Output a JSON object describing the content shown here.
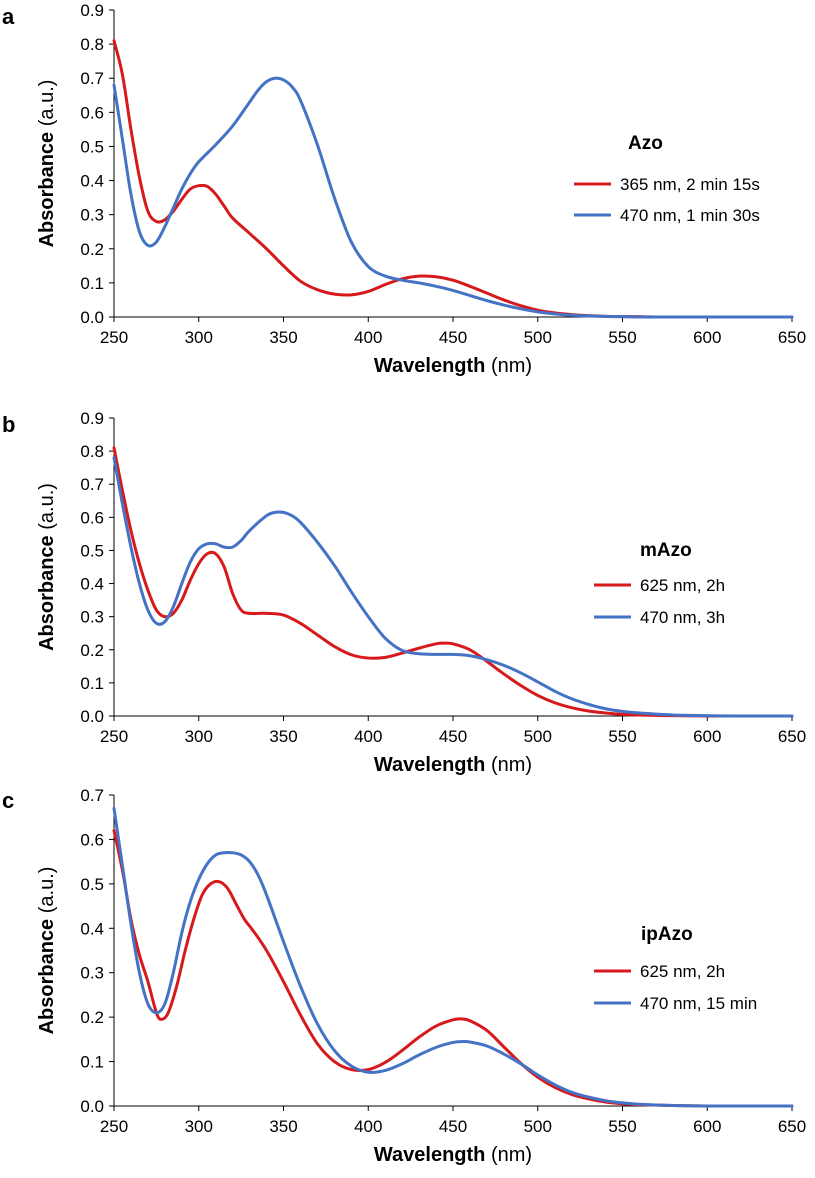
{
  "chart_data": [
    {
      "panel": "a",
      "type": "line",
      "xlabel_bold": "Wavelength",
      "xlabel_unit": "(nm)",
      "ylabel_bold": "Absorbance",
      "ylabel_unit": "(a.u.)",
      "xlim": [
        250,
        650
      ],
      "ylim": [
        0,
        0.9
      ],
      "xticks": [
        "250",
        "300",
        "350",
        "400",
        "450",
        "500",
        "550",
        "600",
        "650"
      ],
      "yticks": [
        "0.0",
        "0.1",
        "0.2",
        "0.3",
        "0.4",
        "0.5",
        "0.6",
        "0.7",
        "0.8",
        "0.9"
      ],
      "legend_title": "Azo",
      "series": [
        {
          "name": "365 nm, 2 min 15s",
          "color": "#d7191c",
          "x": [
            250,
            255,
            260,
            265,
            270,
            275,
            280,
            285,
            290,
            295,
            300,
            305,
            310,
            315,
            320,
            330,
            340,
            350,
            360,
            370,
            380,
            390,
            400,
            410,
            420,
            430,
            440,
            450,
            460,
            470,
            480,
            490,
            500,
            510,
            520,
            530,
            540,
            550,
            560,
            570,
            580,
            600,
            620,
            650
          ],
          "y": [
            0.81,
            0.71,
            0.55,
            0.41,
            0.31,
            0.28,
            0.285,
            0.31,
            0.345,
            0.375,
            0.385,
            0.383,
            0.36,
            0.325,
            0.29,
            0.245,
            0.2,
            0.15,
            0.105,
            0.08,
            0.067,
            0.065,
            0.075,
            0.095,
            0.112,
            0.12,
            0.118,
            0.108,
            0.09,
            0.07,
            0.05,
            0.033,
            0.02,
            0.012,
            0.007,
            0.004,
            0.002,
            0.001,
            0.001,
            0.0,
            0.0,
            0.0,
            0.0,
            0.0
          ]
        },
        {
          "name": "470 nm, 1 min 30s",
          "color": "#4472c4",
          "x": [
            250,
            255,
            260,
            265,
            270,
            275,
            280,
            285,
            290,
            295,
            300,
            310,
            320,
            330,
            335,
            340,
            345,
            350,
            355,
            360,
            370,
            380,
            390,
            400,
            410,
            420,
            430,
            440,
            450,
            460,
            470,
            480,
            490,
            500,
            510,
            520,
            530,
            540,
            550,
            560,
            580,
            600,
            620,
            650
          ],
          "y": [
            0.68,
            0.52,
            0.36,
            0.25,
            0.21,
            0.22,
            0.265,
            0.32,
            0.375,
            0.42,
            0.455,
            0.505,
            0.56,
            0.63,
            0.665,
            0.69,
            0.7,
            0.695,
            0.675,
            0.635,
            0.505,
            0.35,
            0.22,
            0.148,
            0.12,
            0.108,
            0.1,
            0.09,
            0.078,
            0.063,
            0.048,
            0.035,
            0.024,
            0.015,
            0.009,
            0.005,
            0.003,
            0.002,
            0.001,
            0.0,
            0.0,
            0.0,
            0.0,
            0.0
          ]
        }
      ]
    },
    {
      "panel": "b",
      "type": "line",
      "xlabel_bold": "Wavelength",
      "xlabel_unit": "(nm)",
      "ylabel_bold": "Absorbance",
      "ylabel_unit": "(a.u.)",
      "xlim": [
        250,
        650
      ],
      "ylim": [
        0,
        0.9
      ],
      "xticks": [
        "250",
        "300",
        "350",
        "400",
        "450",
        "500",
        "550",
        "600",
        "650"
      ],
      "yticks": [
        "0.0",
        "0.1",
        "0.2",
        "0.3",
        "0.4",
        "0.5",
        "0.6",
        "0.7",
        "0.8",
        "0.9"
      ],
      "legend_title": "mAzo",
      "series": [
        {
          "name": "625 nm, 2h",
          "color": "#d7191c",
          "x": [
            250,
            255,
            260,
            265,
            270,
            275,
            280,
            285,
            290,
            295,
            300,
            305,
            310,
            315,
            320,
            325,
            330,
            340,
            350,
            360,
            370,
            380,
            390,
            400,
            410,
            420,
            430,
            440,
            445,
            450,
            460,
            470,
            480,
            490,
            500,
            510,
            520,
            530,
            540,
            550,
            560,
            580,
            600,
            620,
            650
          ],
          "y": [
            0.81,
            0.68,
            0.56,
            0.46,
            0.38,
            0.32,
            0.3,
            0.31,
            0.35,
            0.41,
            0.46,
            0.49,
            0.49,
            0.45,
            0.37,
            0.32,
            0.31,
            0.31,
            0.305,
            0.28,
            0.245,
            0.21,
            0.185,
            0.175,
            0.177,
            0.19,
            0.205,
            0.218,
            0.22,
            0.218,
            0.2,
            0.165,
            0.127,
            0.092,
            0.062,
            0.04,
            0.025,
            0.015,
            0.009,
            0.005,
            0.003,
            0.001,
            0.0,
            0.0,
            0.0
          ]
        },
        {
          "name": "470 nm, 3h",
          "color": "#4472c4",
          "x": [
            250,
            255,
            260,
            265,
            270,
            275,
            280,
            285,
            290,
            295,
            300,
            305,
            310,
            315,
            320,
            325,
            330,
            340,
            345,
            350,
            355,
            360,
            370,
            380,
            390,
            400,
            410,
            420,
            430,
            440,
            450,
            460,
            470,
            480,
            490,
            500,
            510,
            520,
            530,
            540,
            550,
            560,
            580,
            600,
            620,
            650
          ],
          "y": [
            0.78,
            0.64,
            0.51,
            0.4,
            0.32,
            0.28,
            0.285,
            0.33,
            0.4,
            0.465,
            0.505,
            0.52,
            0.52,
            0.51,
            0.51,
            0.53,
            0.56,
            0.605,
            0.615,
            0.615,
            0.605,
            0.585,
            0.525,
            0.455,
            0.375,
            0.3,
            0.235,
            0.198,
            0.188,
            0.186,
            0.186,
            0.182,
            0.17,
            0.153,
            0.13,
            0.103,
            0.075,
            0.052,
            0.035,
            0.022,
            0.014,
            0.009,
            0.003,
            0.001,
            0.0,
            0.0
          ]
        }
      ]
    },
    {
      "panel": "c",
      "type": "line",
      "xlabel_bold": "Wavelength",
      "xlabel_unit": "(nm)",
      "ylabel_bold": "Absorbance",
      "ylabel_unit": "(a.u.)",
      "xlim": [
        250,
        650
      ],
      "ylim": [
        0,
        0.7
      ],
      "xticks": [
        "250",
        "300",
        "350",
        "400",
        "450",
        "500",
        "550",
        "600",
        "650"
      ],
      "yticks": [
        "0.0",
        "0.1",
        "0.2",
        "0.3",
        "0.4",
        "0.5",
        "0.6",
        "0.7"
      ],
      "legend_title": "ipAzo",
      "series": [
        {
          "name": "625 nm, 2h",
          "color": "#d7191c",
          "x": [
            250,
            255,
            260,
            265,
            270,
            275,
            278,
            282,
            287,
            292,
            297,
            302,
            307,
            312,
            317,
            322,
            327,
            332,
            340,
            350,
            360,
            370,
            380,
            390,
            400,
            410,
            420,
            430,
            440,
            450,
            455,
            460,
            470,
            480,
            490,
            500,
            510,
            520,
            530,
            540,
            550,
            560,
            580,
            600,
            620,
            650
          ],
          "y": [
            0.62,
            0.53,
            0.42,
            0.34,
            0.28,
            0.21,
            0.195,
            0.21,
            0.27,
            0.35,
            0.42,
            0.475,
            0.5,
            0.505,
            0.49,
            0.455,
            0.42,
            0.395,
            0.35,
            0.28,
            0.205,
            0.14,
            0.1,
            0.082,
            0.082,
            0.098,
            0.125,
            0.155,
            0.18,
            0.194,
            0.196,
            0.192,
            0.17,
            0.133,
            0.096,
            0.065,
            0.042,
            0.026,
            0.016,
            0.009,
            0.005,
            0.003,
            0.001,
            0.0,
            0.0,
            0.0
          ]
        },
        {
          "name": "470 nm, 15 min",
          "color": "#4472c4",
          "x": [
            250,
            255,
            260,
            265,
            270,
            275,
            280,
            285,
            290,
            295,
            300,
            305,
            310,
            315,
            320,
            325,
            330,
            335,
            340,
            350,
            360,
            370,
            380,
            390,
            400,
            410,
            420,
            430,
            440,
            450,
            455,
            460,
            470,
            480,
            490,
            500,
            510,
            520,
            530,
            540,
            550,
            560,
            580,
            600,
            620,
            650
          ],
          "y": [
            0.67,
            0.54,
            0.41,
            0.3,
            0.23,
            0.21,
            0.23,
            0.3,
            0.39,
            0.46,
            0.51,
            0.545,
            0.565,
            0.57,
            0.57,
            0.565,
            0.55,
            0.52,
            0.475,
            0.37,
            0.27,
            0.185,
            0.125,
            0.09,
            0.076,
            0.08,
            0.095,
            0.115,
            0.132,
            0.143,
            0.145,
            0.144,
            0.135,
            0.117,
            0.095,
            0.07,
            0.048,
            0.031,
            0.02,
            0.012,
            0.007,
            0.004,
            0.001,
            0.0,
            0.0,
            0.0
          ]
        }
      ]
    }
  ]
}
